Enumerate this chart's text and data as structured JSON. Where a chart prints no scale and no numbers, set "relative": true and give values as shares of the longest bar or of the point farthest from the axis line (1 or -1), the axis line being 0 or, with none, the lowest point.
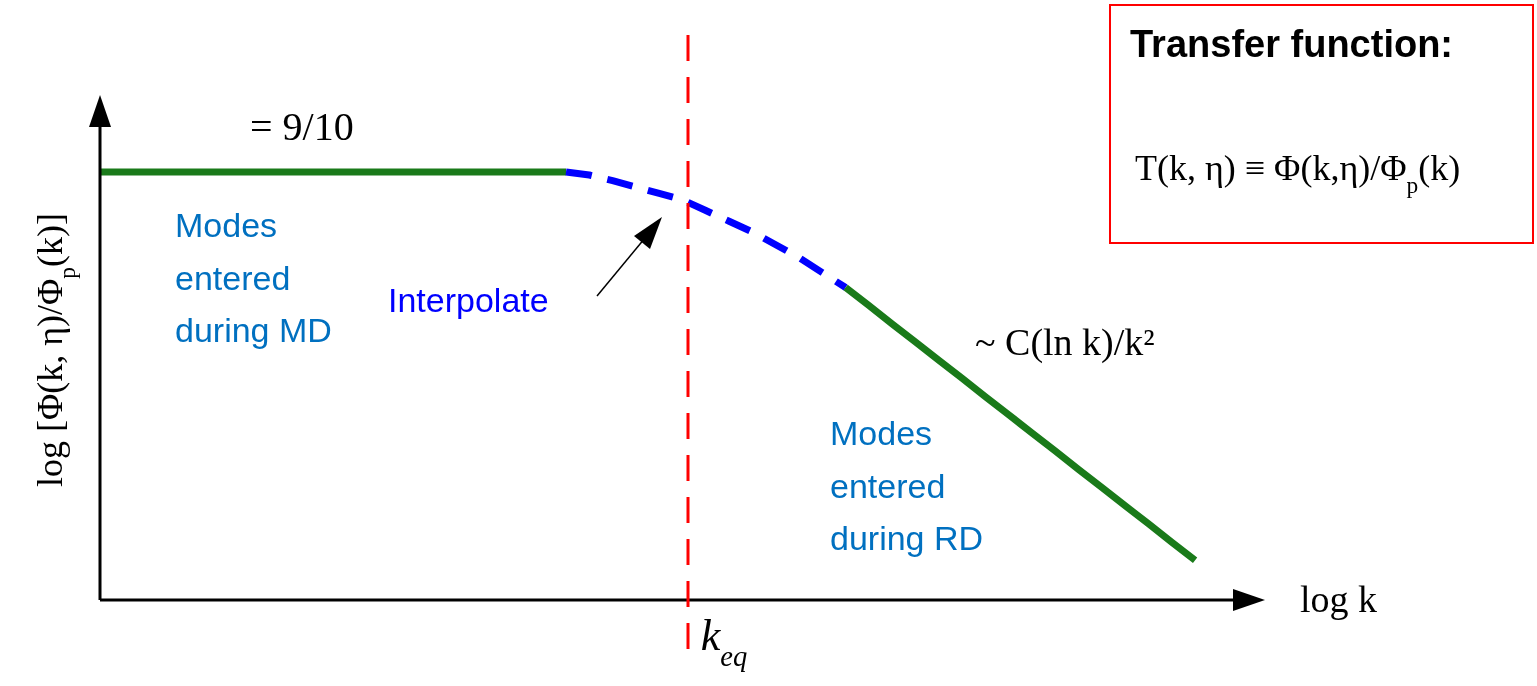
{
  "chart_data": {
    "type": "line",
    "relative": true,
    "xlabel": "log k",
    "ylabel": "log [Φ(k, η)/Φ$_{p}$(k)]",
    "categories": [
      null,
      null,
      null,
      null,
      null,
      null,
      null,
      null,
      null,
      null,
      null,
      null,
      null,
      null,
      null,
      null,
      null,
      null,
      null,
      null,
      null,
      null,
      null,
      null,
      null,
      null,
      null,
      null,
      null,
      null,
      null,
      null,
      null,
      null,
      null,
      null,
      null,
      null,
      null,
      null,
      null,
      null,
      null,
      null,
      null,
      null,
      null,
      null,
      null,
      null,
      null
    ],
    "series": [
      {
        "color": "#1a7a1a",
        "line_style": "solid",
        "values": [
          1,
          1,
          1,
          1,
          1,
          1,
          1,
          1,
          1,
          1,
          1,
          1,
          1,
          1,
          1,
          1,
          1,
          1,
          1,
          1,
          1,
          null,
          null,
          null,
          null,
          null,
          null,
          null,
          null,
          null,
          null,
          null,
          null,
          null,
          null,
          null,
          null,
          null,
          null,
          null,
          null,
          null,
          null,
          null,
          null,
          null,
          null,
          null,
          null,
          null,
          null
        ]
      },
      {
        "color": "#0000ff",
        "line_style": "dashed",
        "values": [
          null,
          null,
          null,
          null,
          null,
          null,
          null,
          null,
          null,
          null,
          null,
          null,
          null,
          null,
          null,
          null,
          null,
          null,
          null,
          null,
          1,
          0.993,
          0.98,
          0.965,
          0.95,
          0.935,
          0.91,
          0.885,
          0.86,
          0.83,
          0.8,
          0.765,
          0.73,
          null,
          null,
          null,
          null,
          null,
          null,
          null,
          null,
          null,
          null,
          null,
          null,
          null,
          null,
          null,
          null,
          null,
          null
        ]
      },
      {
        "color": "#1a7a1a",
        "line_style": "solid",
        "values": [
          null,
          null,
          null,
          null,
          null,
          null,
          null,
          null,
          null,
          null,
          null,
          null,
          null,
          null,
          null,
          null,
          null,
          null,
          null,
          null,
          null,
          null,
          null,
          null,
          null,
          null,
          null,
          null,
          null,
          null,
          null,
          null,
          0.73,
          0.688,
          0.645,
          0.603,
          0.56,
          0.518,
          0.475,
          0.433,
          0.39,
          0.348,
          0.305,
          0.263,
          0.22,
          0.178,
          0.135,
          0.093,
          null,
          null,
          null
        ]
      }
    ],
    "annotations": [
      "= 9/10",
      "Modes entered during MD",
      "Interpolate",
      "~ C(ln k)/k²",
      "Modes entered during RD",
      "Transfer function:",
      "T(k, η) ≡ Φ(k,η)/Φ$_{p}$(k)",
      "k$_{eq}$"
    ]
  }
}
